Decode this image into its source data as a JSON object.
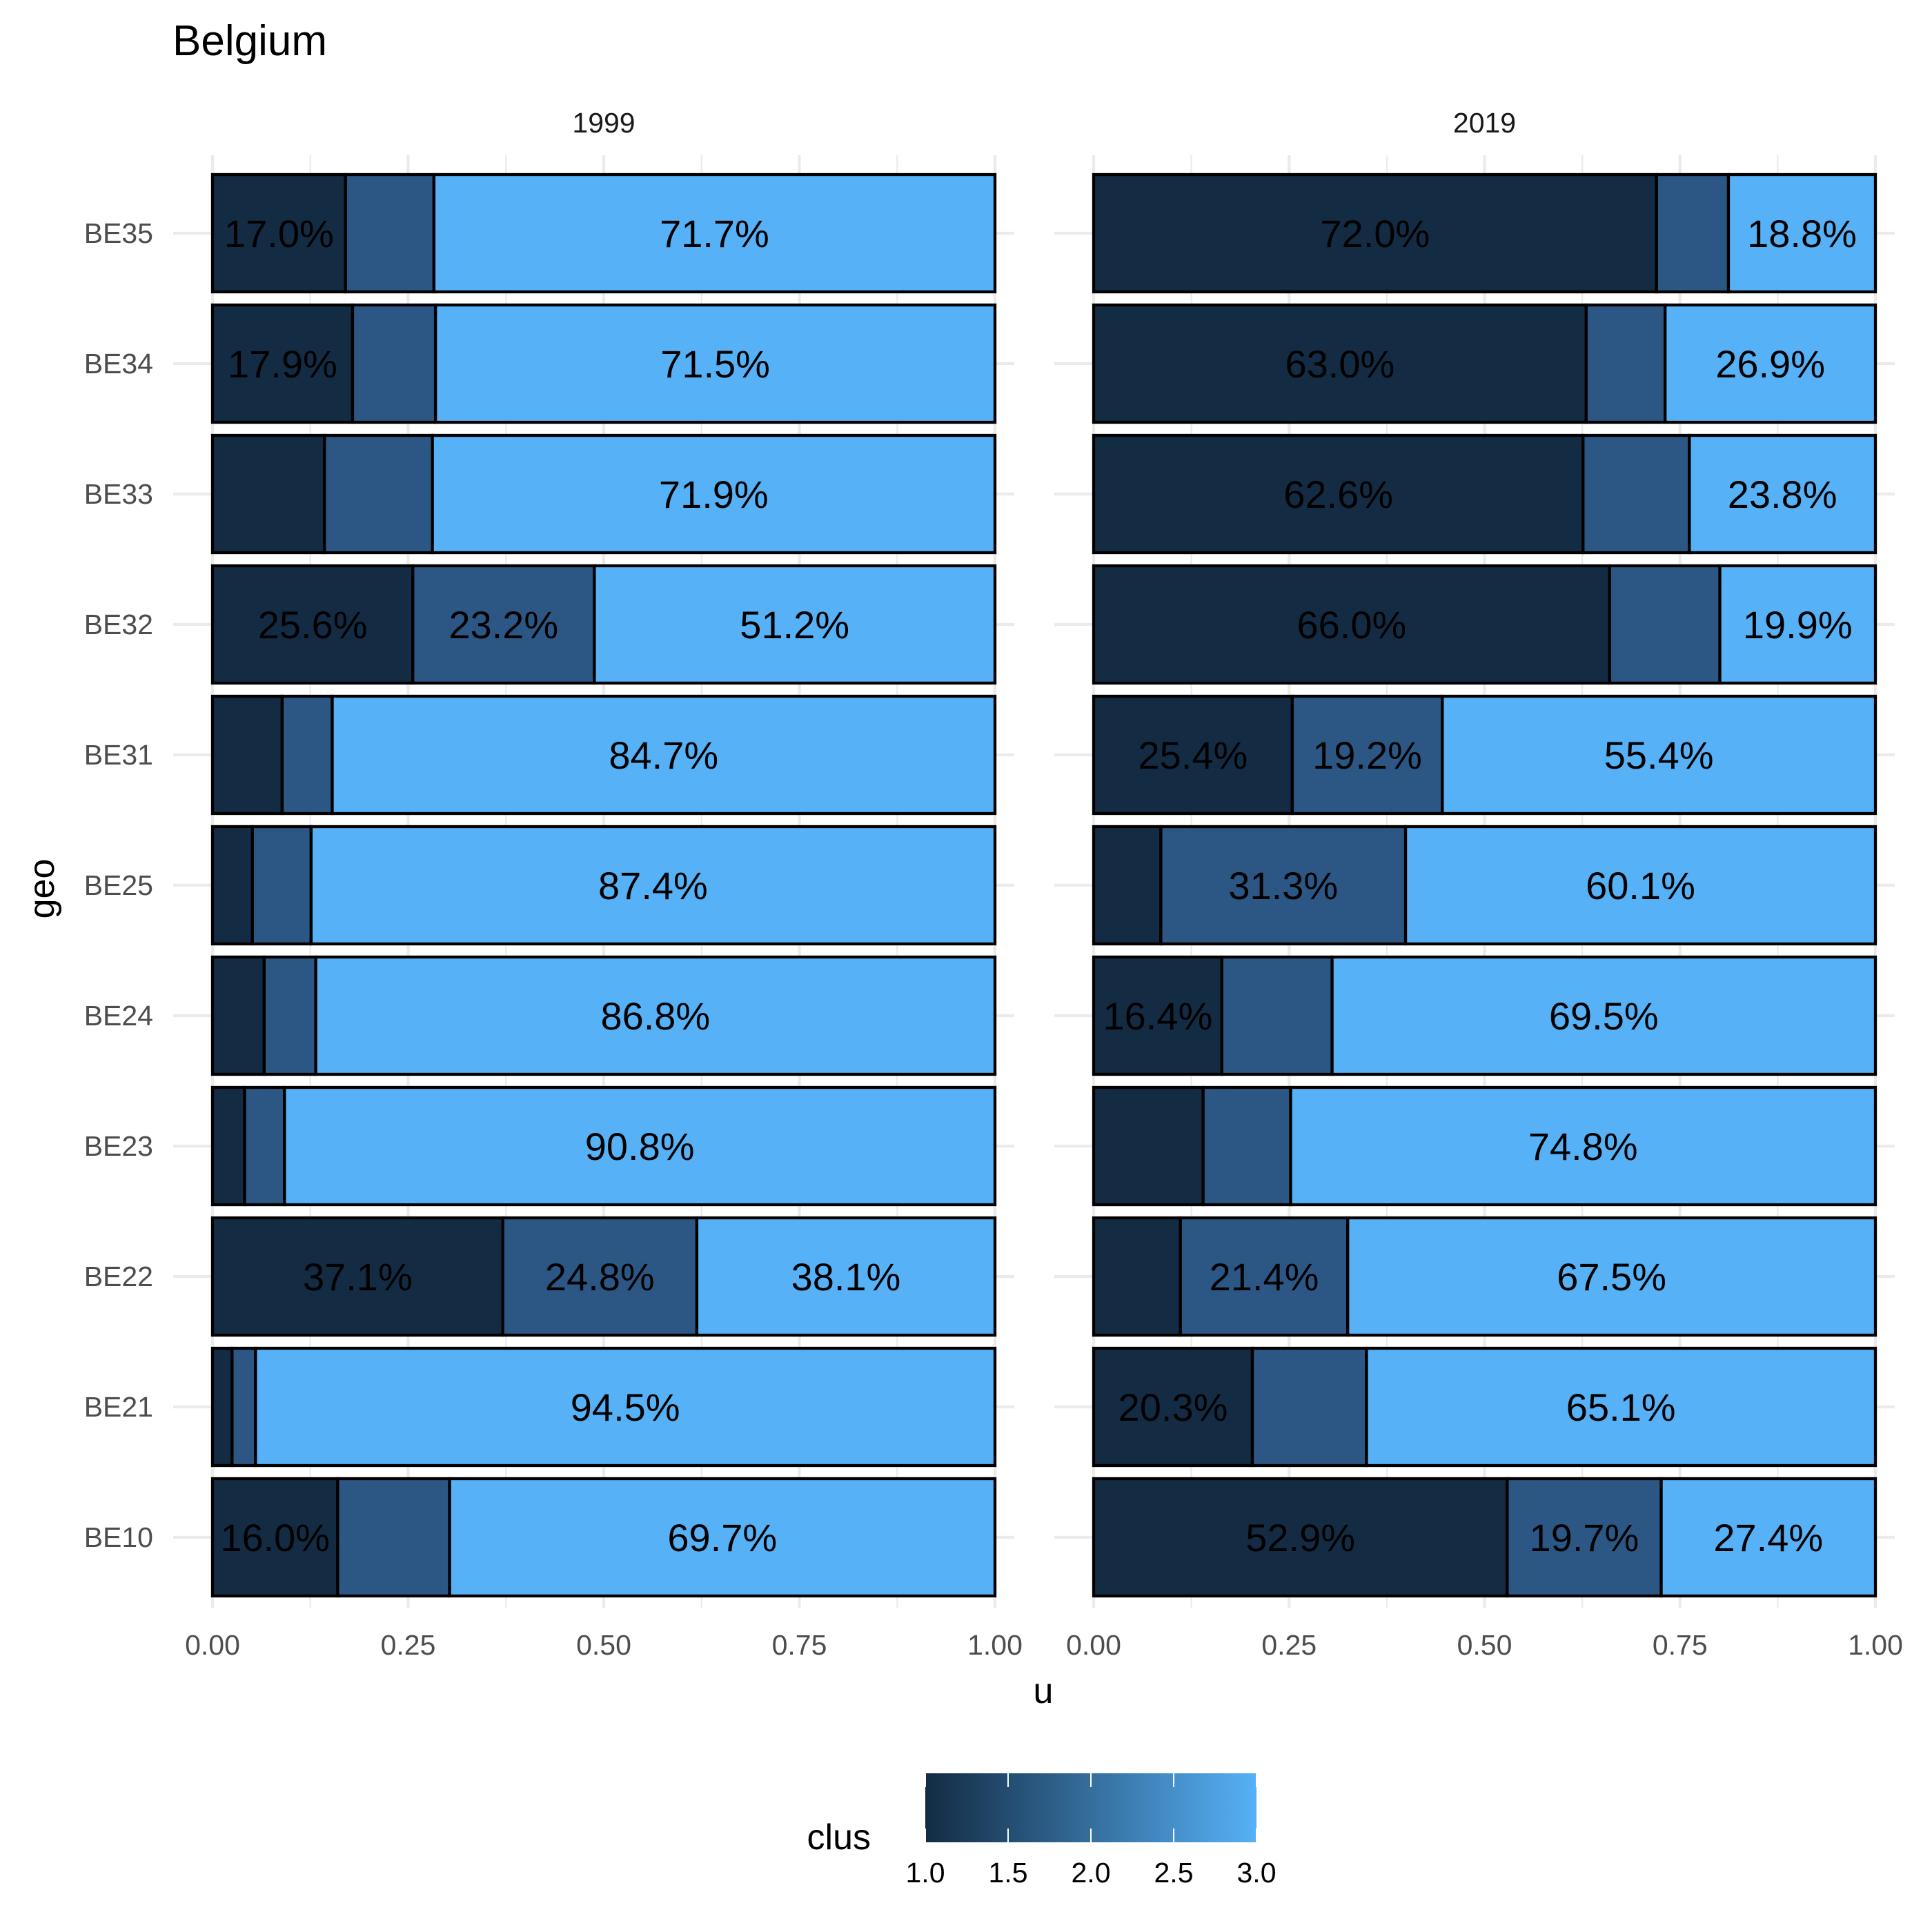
{
  "chart_data": {
    "type": "bar",
    "orientation": "horizontal",
    "stacked": true,
    "title": "Belgium",
    "xlabel": "u",
    "ylabel": "geo",
    "xlim": [
      0,
      1
    ],
    "x_ticks": [
      "0.00",
      "0.25",
      "0.50",
      "0.75",
      "1.00"
    ],
    "categories": [
      "BE35",
      "BE34",
      "BE33",
      "BE32",
      "BE31",
      "BE25",
      "BE24",
      "BE23",
      "BE22",
      "BE21",
      "BE10"
    ],
    "series_colors": {
      "1": "#132B43",
      "2": "#2C5785",
      "3": "#56B1F7"
    },
    "panels": [
      {
        "label": "1999",
        "rows": [
          {
            "geo": "BE35",
            "values": [
              0.17,
              0.113,
              0.717
            ],
            "labels": [
              "17.0%",
              "",
              "71.7%"
            ]
          },
          {
            "geo": "BE34",
            "values": [
              0.179,
              0.106,
              0.715
            ],
            "labels": [
              "17.9%",
              "",
              "71.5%"
            ]
          },
          {
            "geo": "BE33",
            "values": [
              0.143,
              0.138,
              0.719
            ],
            "labels": [
              "",
              "",
              "71.9%"
            ]
          },
          {
            "geo": "BE32",
            "values": [
              0.256,
              0.232,
              0.512
            ],
            "labels": [
              "25.6%",
              "23.2%",
              "51.2%"
            ]
          },
          {
            "geo": "BE31",
            "values": [
              0.089,
              0.064,
              0.847
            ],
            "labels": [
              "",
              "",
              "84.7%"
            ]
          },
          {
            "geo": "BE25",
            "values": [
              0.051,
              0.075,
              0.874
            ],
            "labels": [
              "",
              "",
              "87.4%"
            ]
          },
          {
            "geo": "BE24",
            "values": [
              0.066,
              0.066,
              0.868
            ],
            "labels": [
              "",
              "",
              "86.8%"
            ]
          },
          {
            "geo": "BE23",
            "values": [
              0.041,
              0.051,
              0.908
            ],
            "labels": [
              "",
              "",
              "90.8%"
            ]
          },
          {
            "geo": "BE22",
            "values": [
              0.371,
              0.248,
              0.381
            ],
            "labels": [
              "37.1%",
              "24.8%",
              "38.1%"
            ]
          },
          {
            "geo": "BE21",
            "values": [
              0.025,
              0.03,
              0.945
            ],
            "labels": [
              "",
              "",
              "94.5%"
            ]
          },
          {
            "geo": "BE10",
            "values": [
              0.16,
              0.143,
              0.697
            ],
            "labels": [
              "16.0%",
              "",
              "69.7%"
            ]
          }
        ]
      },
      {
        "label": "2019",
        "rows": [
          {
            "geo": "BE35",
            "values": [
              0.72,
              0.092,
              0.188
            ],
            "labels": [
              "72.0%",
              "",
              "18.8%"
            ]
          },
          {
            "geo": "BE34",
            "values": [
              0.63,
              0.101,
              0.269
            ],
            "labels": [
              "63.0%",
              "",
              "26.9%"
            ]
          },
          {
            "geo": "BE33",
            "values": [
              0.626,
              0.136,
              0.238
            ],
            "labels": [
              "62.6%",
              "",
              "23.8%"
            ]
          },
          {
            "geo": "BE32",
            "values": [
              0.66,
              0.141,
              0.199
            ],
            "labels": [
              "66.0%",
              "",
              "19.9%"
            ]
          },
          {
            "geo": "BE31",
            "values": [
              0.254,
              0.192,
              0.554
            ],
            "labels": [
              "25.4%",
              "19.2%",
              "55.4%"
            ]
          },
          {
            "geo": "BE25",
            "values": [
              0.086,
              0.313,
              0.601
            ],
            "labels": [
              "",
              "31.3%",
              "60.1%"
            ]
          },
          {
            "geo": "BE24",
            "values": [
              0.164,
              0.141,
              0.695
            ],
            "labels": [
              "16.4%",
              "",
              "69.5%"
            ]
          },
          {
            "geo": "BE23",
            "values": [
              0.14,
              0.112,
              0.748
            ],
            "labels": [
              "",
              "",
              "74.8%"
            ]
          },
          {
            "geo": "BE22",
            "values": [
              0.111,
              0.214,
              0.675
            ],
            "labels": [
              "",
              "21.4%",
              "67.5%"
            ]
          },
          {
            "geo": "BE21",
            "values": [
              0.203,
              0.146,
              0.651
            ],
            "labels": [
              "20.3%",
              "",
              "65.1%"
            ]
          },
          {
            "geo": "BE10",
            "values": [
              0.529,
              0.197,
              0.274
            ],
            "labels": [
              "52.9%",
              "19.7%",
              "27.4%"
            ]
          }
        ]
      }
    ],
    "legend": {
      "title": "clus",
      "type": "colorbar",
      "position": "bottom",
      "ticks": [
        "1.0",
        "1.5",
        "2.0",
        "2.5",
        "3.0"
      ],
      "color_low": "#132B43",
      "color_high": "#56B1F7"
    },
    "grid": true
  }
}
